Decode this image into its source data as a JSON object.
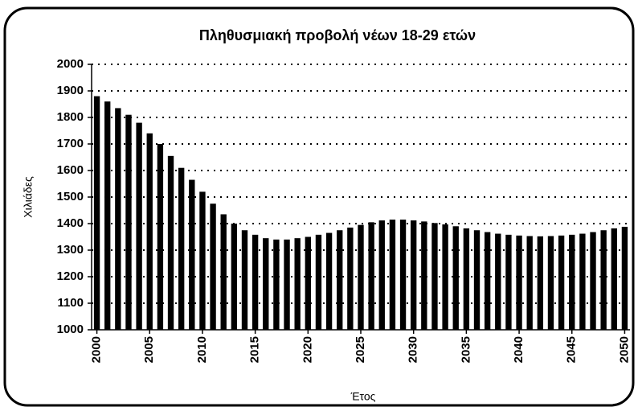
{
  "chart_data": {
    "type": "bar",
    "title": "Πληθυσμιακή προβολή νέων 18-29 ετών",
    "ylabel": "Χιλιάδες",
    "xlabel": "Έτος",
    "x": [
      2000,
      2001,
      2002,
      2003,
      2004,
      2005,
      2006,
      2007,
      2008,
      2009,
      2010,
      2011,
      2012,
      2013,
      2014,
      2015,
      2016,
      2017,
      2018,
      2019,
      2020,
      2021,
      2022,
      2023,
      2024,
      2025,
      2026,
      2027,
      2028,
      2029,
      2030,
      2031,
      2032,
      2033,
      2034,
      2035,
      2036,
      2037,
      2038,
      2039,
      2040,
      2041,
      2042,
      2043,
      2044,
      2045,
      2046,
      2047,
      2048,
      2049,
      2050
    ],
    "values": [
      1880,
      1860,
      1835,
      1810,
      1780,
      1740,
      1700,
      1655,
      1610,
      1565,
      1520,
      1475,
      1435,
      1400,
      1375,
      1358,
      1345,
      1340,
      1340,
      1345,
      1350,
      1358,
      1365,
      1375,
      1385,
      1395,
      1405,
      1412,
      1415,
      1415,
      1412,
      1408,
      1402,
      1397,
      1390,
      1382,
      1375,
      1368,
      1362,
      1358,
      1355,
      1353,
      1352,
      1353,
      1355,
      1358,
      1362,
      1368,
      1375,
      1382,
      1388
    ],
    "color": "#000000",
    "xlim": [
      1999.5,
      2050.5
    ],
    "xticks": [
      2000,
      2005,
      2010,
      2015,
      2020,
      2025,
      2030,
      2035,
      2040,
      2045,
      2050
    ],
    "ylim": [
      1000,
      2000
    ],
    "yticks": [
      1000,
      1100,
      1200,
      1300,
      1400,
      1500,
      1600,
      1700,
      1800,
      1900,
      2000
    ],
    "grid": true
  }
}
